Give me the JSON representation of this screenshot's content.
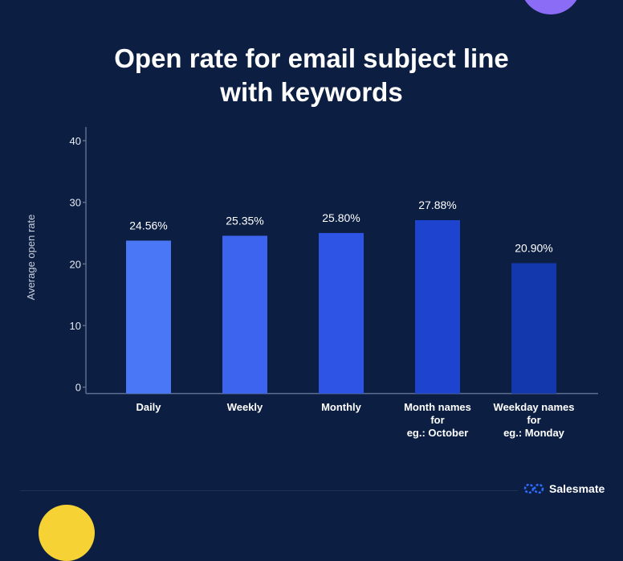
{
  "chart_data": {
    "type": "bar",
    "title": "Open rate for email subject line with keywords",
    "title_lines": [
      "Open rate for email subject line",
      "with keywords"
    ],
    "ylabel": "Average open rate",
    "xlabel": "",
    "ylim": [
      -1,
      42
    ],
    "yticks": [
      0,
      10,
      20,
      30,
      40
    ],
    "grid": false,
    "categories": [
      [
        "Daily"
      ],
      [
        "Weekly"
      ],
      [
        "Monthly"
      ],
      [
        "Month names",
        "for",
        "eg.: October"
      ],
      [
        "Weekday names",
        "for",
        "eg.: Monday"
      ]
    ],
    "values": [
      24.56,
      25.35,
      25.8,
      27.88,
      20.9
    ],
    "data_labels": [
      "24.56%",
      "25.35%",
      "25.80%",
      "27.88%",
      "20.90%"
    ],
    "colors": [
      "#4a77f6",
      "#3c64ef",
      "#2d54e4",
      "#1d43cf",
      "#1337ad"
    ]
  },
  "brand": {
    "name": "Salesmate",
    "icon": "salesmate-logo-icon",
    "color": "#2f6bff"
  },
  "background": "#0c1f43"
}
